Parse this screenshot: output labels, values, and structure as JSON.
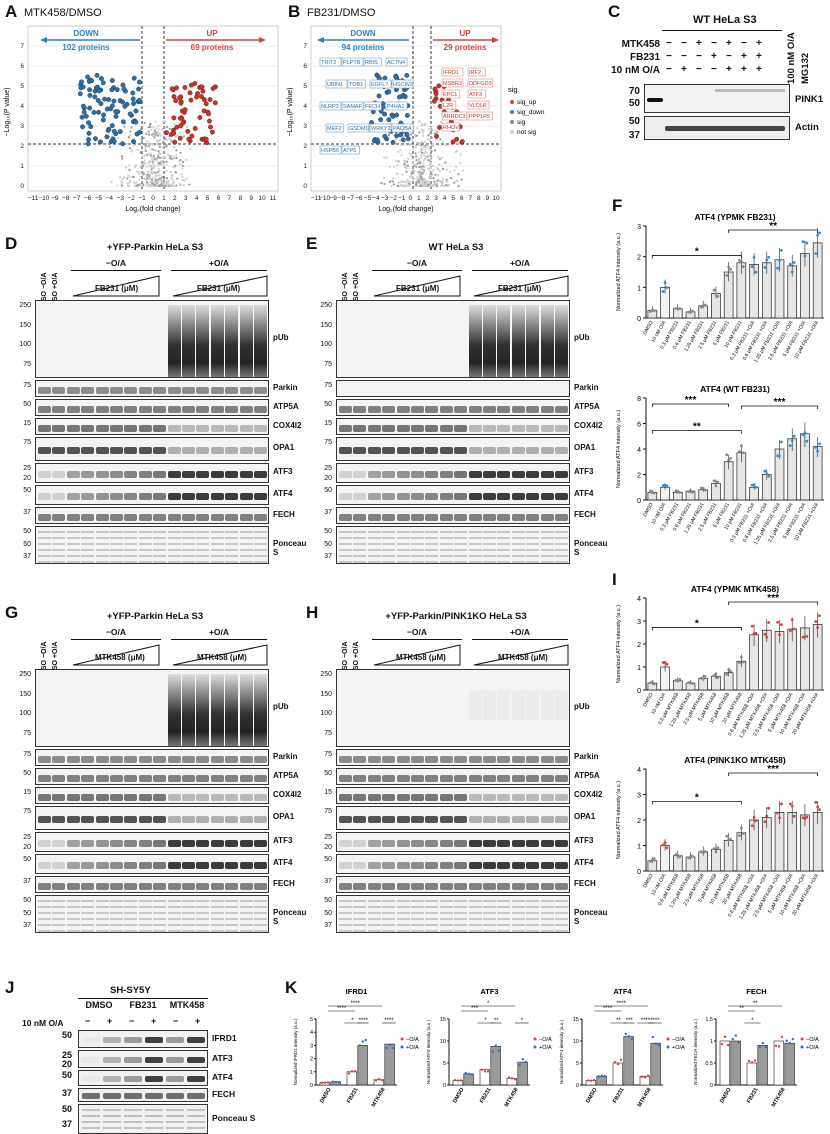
{
  "panels": {
    "A": {
      "label": "A",
      "title": "MTK458/DMSO",
      "down": "DOWN",
      "down_count": "102 proteins",
      "up": "UP",
      "up_count": "69 proteins",
      "xlabel": "Log₂(fold change)",
      "ylabel": "−Log₁₀(P value)"
    },
    "B": {
      "label": "B",
      "title": "FB231/DMSO",
      "down": "DOWN",
      "down_count": "94 proteins",
      "up": "UP",
      "up_count": "29 proteins",
      "xlabel": "Log₂(fold change)",
      "ylabel": "−Log₁₀(P value)",
      "labels_down": [
        "TRIT2",
        "PLPTB",
        "RBIS",
        "ACTN4",
        "UBIN1",
        "TOB1",
        "EGFL7",
        "HSCW2",
        "NLRP3",
        "SAMAF",
        "FECH",
        "P4HA1",
        "MEF2",
        "GSDMD",
        "WRKY2",
        "PAQBA",
        "HSPB6",
        "ATP5"
      ],
      "labels_up": [
        "IFRD1",
        "IRF2",
        "MSBR3",
        "DDFGD3",
        "EPC1",
        "ATF3",
        "L2R",
        "VLDLR",
        "ARRDC3",
        "PPP1R5",
        "RHOV"
      ]
    },
    "legend": {
      "title": "sig",
      "items": [
        "sig_up",
        "sig_down",
        "sig",
        "not sig"
      ]
    },
    "C": {
      "label": "C",
      "header": "WT HeLa S3",
      "rows": [
        "MTK458",
        "FB231",
        "10 nM O/A"
      ],
      "extra1": "100 nM O/A",
      "extra2": "MG132",
      "marks": [
        [
          "−",
          "−",
          "+",
          "−",
          "+",
          "−",
          "+"
        ],
        [
          "−",
          "−",
          "−",
          "+",
          "−",
          "+",
          "+"
        ],
        [
          "−",
          "+",
          "−",
          "−",
          "+",
          "+",
          "+"
        ]
      ],
      "mw": [
        "70",
        "50",
        "50",
        "37"
      ],
      "proteins": [
        "PINK1",
        "Actin"
      ]
    },
    "D": {
      "label": "D",
      "title": "+YFP-Parkin HeLa S3",
      "mo": "−O/A",
      "po": "+O/A",
      "drug1": "FB231 (μM)",
      "drug2": "FB231 (μM)",
      "ctl1": "DMSO −O/A",
      "ctl2": "DMSO +O/A"
    },
    "E": {
      "label": "E",
      "title": "WT HeLa S3",
      "mo": "−O/A",
      "po": "+O/A",
      "drug1": "FB231 (μM)",
      "drug2": "FB231 (μM)",
      "ctl1": "DMSO −O/A",
      "ctl2": "DMSO +O/A"
    },
    "G": {
      "label": "G",
      "title": "+YFP-Parkin HeLa S3",
      "mo": "−O/A",
      "po": "+O/A",
      "drug1": "MTK458 (μM)",
      "drug2": "MTK458 (μM)",
      "ctl1": "DMSO −O/A",
      "ctl2": "DMSO +O/A"
    },
    "H": {
      "label": "H",
      "title": "+YFP-Parkin/PINK1KO HeLa S3",
      "mo": "−O/A",
      "po": "+O/A",
      "drug1": "MTK458 (μM)",
      "drug2": "MTK458 (μM)",
      "ctl1": "DMSO −O/A",
      "ctl2": "DMSO +O/A"
    },
    "blot_rows": {
      "names": [
        "pUb",
        "Parkin",
        "ATP5A",
        "COX4I2",
        "OPA1",
        "ATF3",
        "ATF4",
        "FECH",
        "Ponceau S"
      ],
      "mw_pub": [
        "250",
        "150",
        "100",
        "75"
      ],
      "mw_parkin": "75",
      "mw_atp5a": "50",
      "mw_cox": "15",
      "mw_opa1": "75",
      "mw_atf3": [
        "25",
        "20"
      ],
      "mw_atf4": "50",
      "mw_fech": "37",
      "mw_ponceau": [
        "50",
        "50",
        "37"
      ]
    },
    "F": {
      "label": "F"
    },
    "I": {
      "label": "I"
    },
    "J": {
      "label": "J",
      "title": "SH-SY5Y",
      "groups": [
        "DMSO",
        "FB231",
        "MTK458"
      ],
      "oa_label": "10 nM O/A",
      "marks": [
        "−",
        "+",
        "−",
        "+",
        "−",
        "+"
      ],
      "proteins": [
        "IFRD1",
        "ATF3",
        "ATF4",
        "FECH",
        "Ponceau S"
      ],
      "mw": [
        "50",
        "25",
        "20",
        "50",
        "37",
        "50",
        "37"
      ]
    },
    "K": {
      "label": "K"
    }
  },
  "chart_data": [
    {
      "type": "bar",
      "id": "F-top",
      "title": "ATF4 (YPMK FB231)",
      "ylabel": "Normalized ATF4 intensity (a.u.)",
      "ylim": [
        0,
        3
      ],
      "yticks": [
        0,
        1,
        2,
        3
      ],
      "categories": [
        "DMSO",
        "10 nM O/A",
        "0.3 μM FB231",
        "0.6 μM FB231",
        "1.25 μM FB231",
        "2.5 μM FB231",
        "5 μM FB231",
        "10 μM FB231",
        "0.3 μM FB231 +O/A",
        "0.6 μM FB231 +O/A",
        "1.25 μM FB231 +O/A",
        "2.5 μM FB231 +O/A",
        "5 μM FB231 +O/A",
        "10 μM FB231 +O/A"
      ],
      "values": [
        0.25,
        1.0,
        0.3,
        0.2,
        0.4,
        0.8,
        1.5,
        1.8,
        1.75,
        1.8,
        1.9,
        1.7,
        2.1,
        2.45
      ],
      "sig": [
        "*",
        "**"
      ]
    },
    {
      "type": "bar",
      "id": "F-bottom",
      "title": "ATF4 (WT FB231)",
      "ylabel": "Normalized ATF4 intensity (a.u.)",
      "ylim": [
        0,
        8
      ],
      "yticks": [
        0,
        2,
        4,
        6,
        8
      ],
      "categories": [
        "DMSO",
        "10 nM O/A",
        "0.3 μM FB231",
        "0.6 μM FB231",
        "1.25 μM FB231",
        "2.5 μM FB231",
        "5 μM FB231",
        "10 μM FB231",
        "0.3 μM FB231 +O/A",
        "0.6 μM FB231 +O/A",
        "1.25 μM FB231 +O/A",
        "2.5 μM FB231 +O/A",
        "5 μM FB231 +O/A",
        "10 μM FB231 +O/A"
      ],
      "values": [
        0.6,
        1.0,
        0.6,
        0.7,
        0.8,
        1.3,
        3.0,
        3.7,
        1.0,
        2.0,
        4.0,
        4.8,
        5.2,
        4.2
      ],
      "sig": [
        "***",
        "**",
        "***"
      ]
    },
    {
      "type": "bar",
      "id": "I-top",
      "title": "ATF4 (YPMK MTK458)",
      "ylabel": "Normalized ATF4 intensity (a.u.)",
      "ylim": [
        0,
        4
      ],
      "yticks": [
        0,
        1,
        2,
        3,
        4
      ],
      "categories": [
        "DMSO",
        "10 nM O/A",
        "0.6 μM MTK458",
        "1.25 μM MTK458",
        "2.5 μM MTK458",
        "5 μM MTK458",
        "10 μM MTK458",
        "20 μM MTK458",
        "0.6 μM MTK458 +O/A",
        "1.25 μM MTK458 +O/A",
        "2.5 μM MTK458 +O/A",
        "5 μM MTK458 +O/A",
        "10 μM MTK458 +O/A",
        "20 μM MTK458 +O/A"
      ],
      "values": [
        0.3,
        1.0,
        0.4,
        0.3,
        0.5,
        0.6,
        0.75,
        1.25,
        2.4,
        2.6,
        2.55,
        2.65,
        2.7,
        2.85
      ],
      "sig": [
        "*",
        "***"
      ]
    },
    {
      "type": "bar",
      "id": "I-bottom",
      "title": "ATF4 (PINK1KO MTK458)",
      "ylabel": "Normalized ATF4 intensity (a.u.)",
      "ylim": [
        0,
        4
      ],
      "yticks": [
        0,
        1,
        2,
        3,
        4
      ],
      "categories": [
        "DMSO",
        "10 nM O/A",
        "0.6 μM MTK458",
        "1.25 μM MTK458",
        "2.5 μM MTK458",
        "5 μM MTK458",
        "10 μM MTK458",
        "20 μM MTK458",
        "0.6 μM MTK458 +O/A",
        "1.25 μM MTK458 +O/A",
        "2.5 μM MTK458 +O/A",
        "5 μM MTK458 +O/A",
        "10 μM MTK458 +O/A",
        "20 μM MTK458 +O/A"
      ],
      "values": [
        0.4,
        1.0,
        0.6,
        0.55,
        0.75,
        0.85,
        1.2,
        1.5,
        2.0,
        2.1,
        2.3,
        2.3,
        2.2,
        2.3
      ],
      "sig": [
        "*",
        "***"
      ]
    },
    {
      "type": "bar",
      "id": "K-IFRD1",
      "title": "IFRD1",
      "ylabel": "Normalized IFRD1 intensity (a.u.)",
      "ylim": [
        0,
        5
      ],
      "yticks": [
        0,
        1,
        2,
        3,
        4,
        5
      ],
      "categories": [
        "DMSO",
        "FB231",
        "MTK458"
      ],
      "series": [
        {
          "name": "−O/A",
          "values": [
            0.2,
            1.0,
            0.4
          ]
        },
        {
          "name": "+O/A",
          "values": [
            0.25,
            3.0,
            3.1
          ]
        }
      ],
      "sig": [
        "****",
        "****",
        "*",
        "****",
        "****"
      ]
    },
    {
      "type": "bar",
      "id": "K-ATF3",
      "title": "ATF3",
      "ylabel": "Normalized ATF3 intensity (a.u.)",
      "ylim": [
        0,
        15
      ],
      "yticks": [
        0,
        5,
        10,
        15
      ],
      "categories": [
        "DMSO",
        "FB231",
        "MTK458"
      ],
      "series": [
        {
          "name": "−O/A",
          "values": [
            1.0,
            3.5,
            1.5
          ]
        },
        {
          "name": "+O/A",
          "values": [
            2.5,
            8.8,
            5.2
          ]
        }
      ],
      "sig": [
        "***",
        "*",
        "*",
        "**",
        "*"
      ]
    },
    {
      "type": "bar",
      "id": "K-ATF4",
      "title": "ATF4",
      "ylabel": "Normalized ATF4 intensity (a.u.)",
      "ylim": [
        0,
        15
      ],
      "yticks": [
        0,
        5,
        10,
        15
      ],
      "categories": [
        "DMSO",
        "FB231",
        "MTK458"
      ],
      "series": [
        {
          "name": "−O/A",
          "values": [
            1.0,
            5.0,
            2.0
          ]
        },
        {
          "name": "+O/A",
          "values": [
            2.0,
            11.0,
            9.5
          ]
        }
      ],
      "sig": [
        "****",
        "****",
        "**",
        "***",
        "****",
        "****"
      ]
    },
    {
      "type": "bar",
      "id": "K-FECH",
      "title": "FECH",
      "ylabel": "Normalized FECH intensity (a.u.)",
      "ylim": [
        0,
        1.5
      ],
      "yticks": [
        0.0,
        0.5,
        1.0,
        1.5
      ],
      "categories": [
        "DMSO",
        "FB231",
        "MTK458"
      ],
      "series": [
        {
          "name": "−O/A",
          "values": [
            1.0,
            0.5,
            1.0
          ]
        },
        {
          "name": "+O/A",
          "values": [
            1.0,
            0.9,
            0.95
          ]
        }
      ],
      "sig": [
        "**",
        "**",
        "*"
      ]
    }
  ]
}
